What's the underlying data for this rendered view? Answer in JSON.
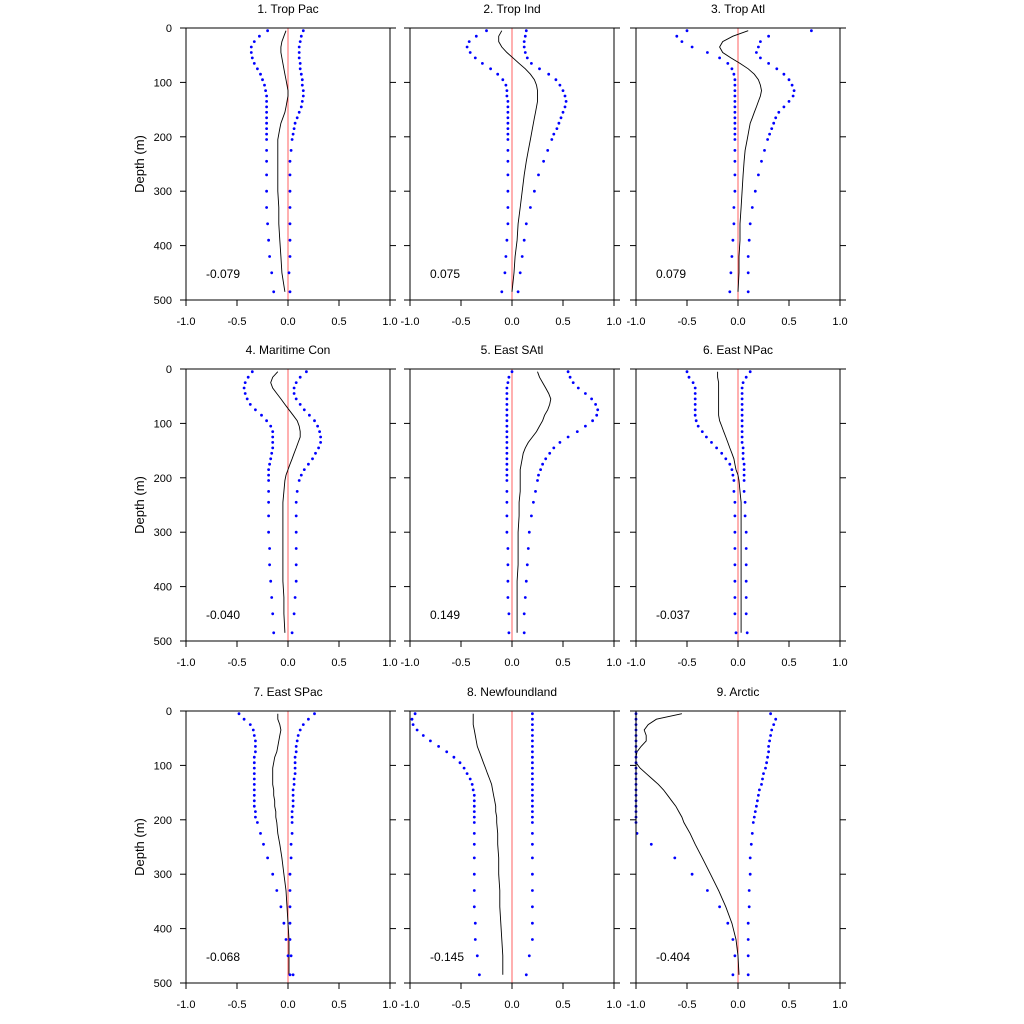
{
  "chart_data": {
    "type": "line",
    "ylabel": "Depth (m)",
    "xlim": [
      -1.0,
      1.0
    ],
    "ylim": [
      0,
      500
    ],
    "xticks": [
      "-1.0",
      "-0.5",
      "0.0",
      "0.5",
      "1.0"
    ],
    "yticks": [
      "0",
      "100",
      "200",
      "300",
      "400",
      "500"
    ],
    "depths": [
      5,
      15,
      25,
      35,
      45,
      55,
      65,
      75,
      85,
      95,
      105,
      115,
      125,
      135,
      145,
      155,
      165,
      175,
      185,
      195,
      205,
      225,
      245,
      270,
      300,
      330,
      360,
      390,
      420,
      450,
      485
    ],
    "colors": {
      "profile": "#000000",
      "bounds": "#0000ff",
      "zero_line": "#ff6060"
    },
    "panels": [
      {
        "title": "1. Trop Pac",
        "corr": "-0.079",
        "mean": [
          -0.02,
          -0.04,
          -0.06,
          -0.07,
          -0.07,
          -0.06,
          -0.05,
          -0.04,
          -0.03,
          -0.02,
          -0.01,
          0.0,
          0.0,
          -0.01,
          -0.02,
          -0.03,
          -0.05,
          -0.07,
          -0.08,
          -0.09,
          -0.1,
          -0.1,
          -0.1,
          -0.1,
          -0.1,
          -0.09,
          -0.09,
          -0.08,
          -0.07,
          -0.06,
          -0.03
        ],
        "lower": [
          -0.2,
          -0.28,
          -0.33,
          -0.36,
          -0.36,
          -0.35,
          -0.33,
          -0.3,
          -0.27,
          -0.25,
          -0.23,
          -0.22,
          -0.21,
          -0.21,
          -0.21,
          -0.21,
          -0.21,
          -0.21,
          -0.21,
          -0.21,
          -0.21,
          -0.21,
          -0.21,
          -0.21,
          -0.21,
          -0.21,
          -0.2,
          -0.19,
          -0.18,
          -0.16,
          -0.14
        ],
        "upper": [
          0.15,
          0.13,
          0.12,
          0.11,
          0.11,
          0.11,
          0.12,
          0.12,
          0.13,
          0.14,
          0.14,
          0.15,
          0.15,
          0.14,
          0.13,
          0.11,
          0.09,
          0.07,
          0.06,
          0.05,
          0.04,
          0.03,
          0.02,
          0.02,
          0.02,
          0.02,
          0.02,
          0.02,
          0.02,
          0.01,
          0.02
        ]
      },
      {
        "title": "2. Trop Ind",
        "corr": "0.075",
        "mean": [
          -0.1,
          -0.13,
          -0.13,
          -0.1,
          -0.05,
          0.01,
          0.07,
          0.13,
          0.18,
          0.22,
          0.24,
          0.25,
          0.25,
          0.25,
          0.24,
          0.23,
          0.22,
          0.21,
          0.2,
          0.19,
          0.18,
          0.16,
          0.14,
          0.12,
          0.1,
          0.08,
          0.06,
          0.05,
          0.03,
          0.02,
          0.0
        ],
        "lower": [
          -0.25,
          -0.35,
          -0.42,
          -0.44,
          -0.41,
          -0.36,
          -0.29,
          -0.21,
          -0.14,
          -0.09,
          -0.06,
          -0.05,
          -0.05,
          -0.04,
          -0.04,
          -0.04,
          -0.04,
          -0.04,
          -0.04,
          -0.04,
          -0.04,
          -0.04,
          -0.04,
          -0.04,
          -0.04,
          -0.04,
          -0.04,
          -0.05,
          -0.06,
          -0.07,
          -0.1
        ],
        "upper": [
          0.14,
          0.13,
          0.12,
          0.12,
          0.13,
          0.15,
          0.19,
          0.27,
          0.36,
          0.43,
          0.47,
          0.5,
          0.52,
          0.53,
          0.52,
          0.5,
          0.48,
          0.46,
          0.44,
          0.41,
          0.39,
          0.35,
          0.31,
          0.26,
          0.22,
          0.18,
          0.14,
          0.12,
          0.1,
          0.08,
          0.06
        ]
      },
      {
        "title": "3. Trop Atl",
        "corr": "0.079",
        "mean": [
          0.1,
          -0.05,
          -0.15,
          -0.18,
          -0.15,
          -0.07,
          0.02,
          0.1,
          0.16,
          0.2,
          0.22,
          0.23,
          0.22,
          0.2,
          0.18,
          0.16,
          0.14,
          0.12,
          0.11,
          0.1,
          0.09,
          0.07,
          0.06,
          0.05,
          0.04,
          0.03,
          0.02,
          0.02,
          0.01,
          0.01,
          0.0
        ],
        "lower": [
          -0.5,
          -0.6,
          -0.55,
          -0.45,
          -0.3,
          -0.18,
          -0.1,
          -0.06,
          -0.04,
          -0.03,
          -0.03,
          -0.03,
          -0.03,
          -0.03,
          -0.03,
          -0.03,
          -0.03,
          -0.03,
          -0.03,
          -0.03,
          -0.03,
          -0.03,
          -0.03,
          -0.03,
          -0.03,
          -0.04,
          -0.04,
          -0.05,
          -0.06,
          -0.07,
          -0.08
        ],
        "upper": [
          0.72,
          0.3,
          0.22,
          0.2,
          0.18,
          0.22,
          0.3,
          0.38,
          0.45,
          0.5,
          0.53,
          0.55,
          0.54,
          0.5,
          0.45,
          0.4,
          0.37,
          0.35,
          0.33,
          0.31,
          0.29,
          0.26,
          0.23,
          0.2,
          0.17,
          0.14,
          0.12,
          0.11,
          0.1,
          0.1,
          0.1
        ]
      },
      {
        "title": "4. Maritime Con",
        "corr": "-0.040",
        "mean": [
          -0.1,
          -0.15,
          -0.17,
          -0.15,
          -0.11,
          -0.07,
          -0.03,
          0.01,
          0.05,
          0.09,
          0.11,
          0.12,
          0.12,
          0.1,
          0.08,
          0.06,
          0.04,
          0.02,
          0.0,
          -0.02,
          -0.03,
          -0.04,
          -0.05,
          -0.05,
          -0.05,
          -0.05,
          -0.05,
          -0.05,
          -0.04,
          -0.04,
          -0.03
        ],
        "lower": [
          -0.35,
          -0.39,
          -0.42,
          -0.43,
          -0.42,
          -0.4,
          -0.37,
          -0.32,
          -0.26,
          -0.21,
          -0.17,
          -0.15,
          -0.15,
          -0.15,
          -0.15,
          -0.16,
          -0.17,
          -0.18,
          -0.19,
          -0.19,
          -0.19,
          -0.19,
          -0.19,
          -0.19,
          -0.19,
          -0.18,
          -0.18,
          -0.17,
          -0.16,
          -0.15,
          -0.14
        ],
        "upper": [
          0.18,
          0.12,
          0.08,
          0.06,
          0.06,
          0.08,
          0.12,
          0.16,
          0.21,
          0.26,
          0.29,
          0.31,
          0.32,
          0.32,
          0.3,
          0.27,
          0.24,
          0.2,
          0.16,
          0.13,
          0.11,
          0.09,
          0.08,
          0.08,
          0.08,
          0.08,
          0.08,
          0.08,
          0.07,
          0.06,
          0.04
        ]
      },
      {
        "title": "5. East SAtl",
        "corr": "0.149",
        "mean": [
          0.25,
          0.27,
          0.3,
          0.33,
          0.36,
          0.38,
          0.37,
          0.35,
          0.32,
          0.3,
          0.27,
          0.24,
          0.2,
          0.16,
          0.13,
          0.11,
          0.1,
          0.09,
          0.08,
          0.08,
          0.08,
          0.08,
          0.07,
          0.07,
          0.06,
          0.06,
          0.06,
          0.05,
          0.05,
          0.05,
          0.05
        ],
        "lower": [
          0.0,
          -0.03,
          -0.04,
          -0.05,
          -0.05,
          -0.05,
          -0.05,
          -0.05,
          -0.05,
          -0.05,
          -0.05,
          -0.05,
          -0.05,
          -0.05,
          -0.05,
          -0.05,
          -0.05,
          -0.05,
          -0.05,
          -0.05,
          -0.05,
          -0.05,
          -0.05,
          -0.05,
          -0.05,
          -0.04,
          -0.04,
          -0.04,
          -0.04,
          -0.03,
          -0.03
        ],
        "upper": [
          0.55,
          0.57,
          0.6,
          0.65,
          0.72,
          0.78,
          0.82,
          0.84,
          0.83,
          0.79,
          0.72,
          0.64,
          0.55,
          0.47,
          0.41,
          0.37,
          0.33,
          0.3,
          0.28,
          0.26,
          0.25,
          0.23,
          0.21,
          0.19,
          0.17,
          0.16,
          0.15,
          0.14,
          0.13,
          0.12,
          0.12
        ]
      },
      {
        "title": "6. East NPac",
        "corr": "-0.037",
        "mean": [
          -0.2,
          -0.2,
          -0.19,
          -0.19,
          -0.19,
          -0.19,
          -0.19,
          -0.19,
          -0.19,
          -0.18,
          -0.16,
          -0.14,
          -0.12,
          -0.1,
          -0.08,
          -0.06,
          -0.04,
          -0.03,
          -0.02,
          0.0,
          0.01,
          0.02,
          0.03,
          0.03,
          0.03,
          0.03,
          0.03,
          0.03,
          0.03,
          0.03,
          0.03
        ],
        "lower": [
          -0.5,
          -0.48,
          -0.44,
          -0.42,
          -0.42,
          -0.42,
          -0.42,
          -0.42,
          -0.42,
          -0.41,
          -0.39,
          -0.35,
          -0.31,
          -0.26,
          -0.21,
          -0.16,
          -0.12,
          -0.08,
          -0.06,
          -0.05,
          -0.04,
          -0.04,
          -0.03,
          -0.03,
          -0.03,
          -0.03,
          -0.03,
          -0.03,
          -0.03,
          -0.03,
          -0.02
        ],
        "upper": [
          0.12,
          0.08,
          0.05,
          0.04,
          0.04,
          0.04,
          0.04,
          0.04,
          0.04,
          0.04,
          0.04,
          0.04,
          0.04,
          0.04,
          0.05,
          0.05,
          0.05,
          0.06,
          0.06,
          0.06,
          0.06,
          0.06,
          0.07,
          0.07,
          0.08,
          0.08,
          0.08,
          0.08,
          0.08,
          0.08,
          0.09
        ]
      },
      {
        "title": "7. East SPac",
        "corr": "-0.068",
        "mean": [
          -0.1,
          -0.1,
          -0.08,
          -0.07,
          -0.08,
          -0.09,
          -0.1,
          -0.11,
          -0.13,
          -0.14,
          -0.15,
          -0.15,
          -0.15,
          -0.15,
          -0.14,
          -0.14,
          -0.13,
          -0.13,
          -0.12,
          -0.12,
          -0.11,
          -0.1,
          -0.08,
          -0.06,
          -0.04,
          -0.02,
          -0.01,
          0.0,
          0.01,
          0.01,
          0.01
        ],
        "lower": [
          -0.48,
          -0.43,
          -0.37,
          -0.34,
          -0.33,
          -0.32,
          -0.32,
          -0.32,
          -0.33,
          -0.33,
          -0.33,
          -0.33,
          -0.33,
          -0.33,
          -0.33,
          -0.33,
          -0.33,
          -0.33,
          -0.32,
          -0.32,
          -0.3,
          -0.27,
          -0.24,
          -0.2,
          -0.15,
          -0.11,
          -0.07,
          -0.04,
          -0.02,
          0.0,
          0.02
        ],
        "upper": [
          0.26,
          0.2,
          0.15,
          0.12,
          0.1,
          0.09,
          0.08,
          0.08,
          0.07,
          0.07,
          0.07,
          0.07,
          0.06,
          0.06,
          0.05,
          0.05,
          0.05,
          0.05,
          0.04,
          0.04,
          0.04,
          0.04,
          0.03,
          0.03,
          0.02,
          0.02,
          0.02,
          0.02,
          0.02,
          0.03,
          0.05
        ]
      },
      {
        "title": "8. Newfoundland",
        "corr": "-0.145",
        "mean": [
          -0.38,
          -0.38,
          -0.38,
          -0.37,
          -0.36,
          -0.35,
          -0.34,
          -0.32,
          -0.3,
          -0.28,
          -0.26,
          -0.24,
          -0.22,
          -0.2,
          -0.19,
          -0.18,
          -0.17,
          -0.16,
          -0.16,
          -0.15,
          -0.15,
          -0.14,
          -0.14,
          -0.13,
          -0.13,
          -0.12,
          -0.12,
          -0.11,
          -0.1,
          -0.09,
          -0.09
        ],
        "lower": [
          -0.95,
          -0.98,
          -0.97,
          -0.93,
          -0.87,
          -0.8,
          -0.72,
          -0.64,
          -0.57,
          -0.51,
          -0.47,
          -0.44,
          -0.41,
          -0.39,
          -0.38,
          -0.37,
          -0.37,
          -0.37,
          -0.37,
          -0.37,
          -0.37,
          -0.37,
          -0.37,
          -0.37,
          -0.37,
          -0.37,
          -0.37,
          -0.36,
          -0.36,
          -0.34,
          -0.32
        ],
        "upper": [
          0.2,
          0.2,
          0.2,
          0.2,
          0.2,
          0.2,
          0.2,
          0.2,
          0.2,
          0.2,
          0.2,
          0.2,
          0.2,
          0.2,
          0.2,
          0.2,
          0.2,
          0.2,
          0.2,
          0.2,
          0.2,
          0.2,
          0.2,
          0.2,
          0.2,
          0.2,
          0.2,
          0.2,
          0.2,
          0.17,
          0.14
        ]
      },
      {
        "title": "9. Arctic",
        "corr": "-0.404",
        "mean": [
          -0.55,
          -0.8,
          -0.88,
          -0.92,
          -0.9,
          -0.9,
          -0.95,
          -0.99,
          -1.0,
          -1.0,
          -0.96,
          -0.9,
          -0.84,
          -0.78,
          -0.73,
          -0.69,
          -0.65,
          -0.61,
          -0.58,
          -0.55,
          -0.53,
          -0.47,
          -0.42,
          -0.35,
          -0.27,
          -0.19,
          -0.12,
          -0.06,
          -0.02,
          0.0,
          0.01
        ],
        "lower": [
          -1.0,
          -1.0,
          -1.0,
          -1.0,
          -1.0,
          -1.0,
          -1.0,
          -1.0,
          -1.0,
          -1.0,
          -1.0,
          -1.0,
          -1.0,
          -1.0,
          -1.0,
          -1.0,
          -1.0,
          -1.0,
          -1.0,
          -1.0,
          -1.0,
          -0.99,
          -0.85,
          -0.62,
          -0.45,
          -0.3,
          -0.18,
          -0.1,
          -0.05,
          -0.03,
          -0.05
        ],
        "upper": [
          0.32,
          0.37,
          0.35,
          0.33,
          0.32,
          0.31,
          0.3,
          0.3,
          0.29,
          0.28,
          0.27,
          0.25,
          0.24,
          0.23,
          0.21,
          0.2,
          0.19,
          0.18,
          0.17,
          0.16,
          0.15,
          0.14,
          0.13,
          0.12,
          0.12,
          0.11,
          0.11,
          0.1,
          0.1,
          0.1,
          0.1
        ]
      }
    ]
  }
}
